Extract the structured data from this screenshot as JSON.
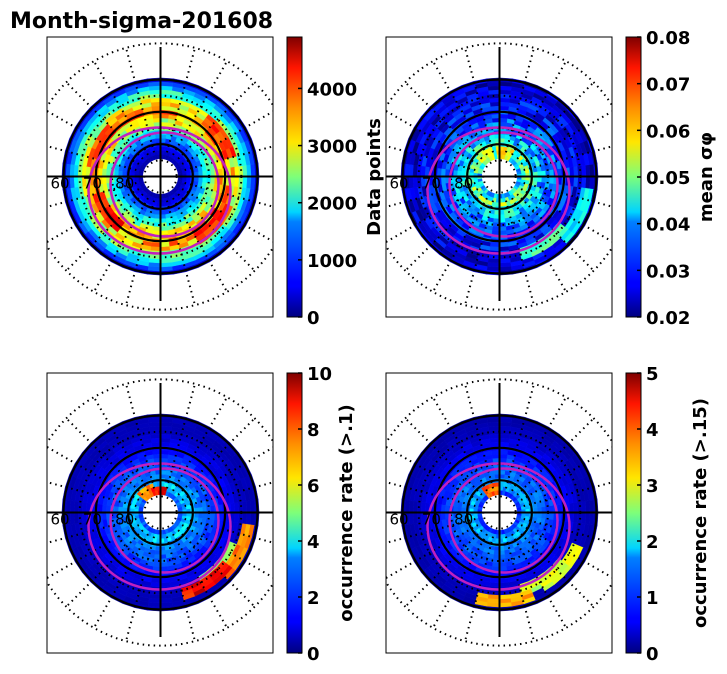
{
  "figure": {
    "title": "Month-sigma-201608"
  },
  "chart_data": [
    {
      "type": "heatmap",
      "projection": "polar (north polar MLat/MLT)",
      "panel": "top-left",
      "quantity": "Data points",
      "colorbar": {
        "label": "Data points",
        "ticks": [
          "0",
          "1000",
          "2000",
          "3000",
          "4000"
        ],
        "tick_values": [
          0,
          1000,
          2000,
          3000,
          4000
        ],
        "range": [
          0,
          4900
        ],
        "colormap": "jet"
      },
      "lat_labels": [
        "60",
        "70",
        "80"
      ],
      "description": "Annulus 60-85 MLat; high counts (3000-4700) in 65-75 band, low near pole and outer edge",
      "ring_profile": [
        {
          "lat": 60,
          "value": 300
        },
        {
          "lat": 62,
          "value": 1200
        },
        {
          "lat": 65,
          "value": 2300
        },
        {
          "lat": 68,
          "value": 3300
        },
        {
          "lat": 70,
          "value": 3600
        },
        {
          "lat": 72,
          "value": 3100
        },
        {
          "lat": 75,
          "value": 2200
        },
        {
          "lat": 78,
          "value": 1200
        },
        {
          "lat": 81,
          "value": 600
        },
        {
          "lat": 84,
          "value": 200
        }
      ],
      "hotspots": [
        {
          "lat": 67,
          "mlt": 3,
          "value": 4400
        },
        {
          "lat": 69,
          "mlt": 20,
          "value": 4600
        },
        {
          "lat": 68,
          "mlt": 16,
          "value": 4200
        },
        {
          "lat": 67,
          "mlt": 8,
          "value": 4300
        }
      ]
    },
    {
      "type": "heatmap",
      "projection": "polar (north polar MLat/MLT)",
      "panel": "top-right",
      "quantity": "mean sigma_phi",
      "colorbar": {
        "label": "mean σφ",
        "ticks": [
          "0.02",
          "0.03",
          "0.04",
          "0.05",
          "0.06",
          "0.07",
          "0.08"
        ],
        "tick_values": [
          0.02,
          0.03,
          0.04,
          0.05,
          0.06,
          0.07,
          0.08
        ],
        "range": [
          0.02,
          0.08
        ],
        "colormap": "jet"
      },
      "lat_labels": [
        "60",
        "70",
        "80"
      ],
      "ring_profile": [
        {
          "lat": 60,
          "value": 0.024
        },
        {
          "lat": 65,
          "value": 0.026
        },
        {
          "lat": 70,
          "value": 0.03
        },
        {
          "lat": 75,
          "value": 0.034
        },
        {
          "lat": 79,
          "value": 0.042
        },
        {
          "lat": 82,
          "value": 0.05
        },
        {
          "lat": 84,
          "value": 0.04
        }
      ],
      "hotspots": [
        {
          "lat": 82,
          "mlt": 11,
          "value": 0.062
        },
        {
          "lat": 82,
          "mlt": 14,
          "value": 0.058
        },
        {
          "lat": 62,
          "mlt": 4,
          "value": 0.045
        },
        {
          "lat": 64,
          "mlt": 2,
          "value": 0.05
        }
      ]
    },
    {
      "type": "heatmap",
      "projection": "polar (north polar MLat/MLT)",
      "panel": "bottom-left",
      "quantity": "occurrence rate (>.1)",
      "colorbar": {
        "label": "occurrence rate (>.1)",
        "ticks": [
          "0",
          "2",
          "4",
          "6",
          "8",
          "10"
        ],
        "tick_values": [
          0,
          2,
          4,
          6,
          8,
          10
        ],
        "range": [
          0,
          10
        ],
        "colormap": "jet"
      },
      "lat_labels": [
        "60",
        "70",
        "80"
      ],
      "ring_profile": [
        {
          "lat": 60,
          "value": 0.5
        },
        {
          "lat": 65,
          "value": 0.6
        },
        {
          "lat": 70,
          "value": 1.2
        },
        {
          "lat": 75,
          "value": 2.0
        },
        {
          "lat": 79,
          "value": 2.6
        },
        {
          "lat": 82,
          "value": 3.5
        },
        {
          "lat": 84,
          "value": 2.0
        }
      ],
      "hotspots": [
        {
          "lat": 83,
          "mlt": 12,
          "value": 9.5
        },
        {
          "lat": 82,
          "mlt": 14,
          "value": 8.0
        },
        {
          "lat": 64,
          "mlt": 3,
          "value": 5.5
        },
        {
          "lat": 62,
          "mlt": 4,
          "value": 8.0
        },
        {
          "lat": 63,
          "mlt": 2,
          "value": 9.5
        }
      ]
    },
    {
      "type": "heatmap",
      "projection": "polar (north polar MLat/MLT)",
      "panel": "bottom-right",
      "quantity": "occurrence rate (>.15)",
      "colorbar": {
        "label": "occurrence rate (>.15)",
        "ticks": [
          "0",
          "1",
          "2",
          "3",
          "4",
          "5"
        ],
        "tick_values": [
          0,
          1,
          2,
          3,
          4,
          5
        ],
        "range": [
          0,
          5
        ],
        "colormap": "jet"
      },
      "lat_labels": [
        "60",
        "70",
        "80"
      ],
      "ring_profile": [
        {
          "lat": 60,
          "value": 0.2
        },
        {
          "lat": 65,
          "value": 0.3
        },
        {
          "lat": 70,
          "value": 0.6
        },
        {
          "lat": 75,
          "value": 1.0
        },
        {
          "lat": 79,
          "value": 1.2
        },
        {
          "lat": 82,
          "value": 1.6
        },
        {
          "lat": 84,
          "value": 0.8
        }
      ],
      "hotspots": [
        {
          "lat": 62,
          "mlt": 0,
          "value": 3.8
        },
        {
          "lat": 64,
          "mlt": 2,
          "value": 3.0
        },
        {
          "lat": 63,
          "mlt": 3,
          "value": 3.2
        },
        {
          "lat": 82,
          "mlt": 13,
          "value": 4.2
        }
      ]
    }
  ],
  "overlays": {
    "solid_circles_lat": [
      60,
      70,
      80
    ],
    "dotted_circles_lat": [
      55,
      65,
      75,
      85
    ],
    "oval_color": "#c020c0",
    "grid_color": "#000000"
  }
}
